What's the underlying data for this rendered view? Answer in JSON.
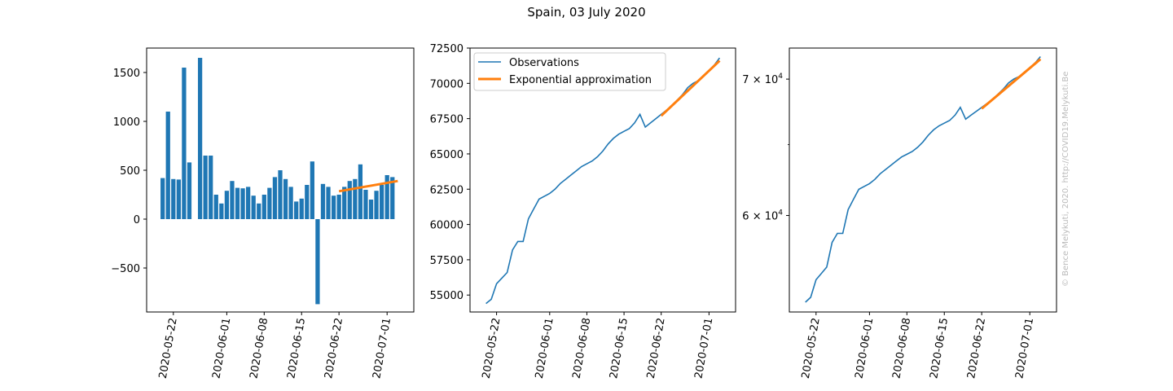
{
  "figure": {
    "title": "Spain, 03 July 2020",
    "copyright": "© Bence Melykuti, 2020. http://COVID19.Melykuti.Be"
  },
  "colors": {
    "observations": "#1f77b4",
    "approximation": "#ff7f0e"
  },
  "chart_data": [
    {
      "type": "bar",
      "panel": "daily-new-cases",
      "x_start": "2020-05-20",
      "x_end": "2020-07-03",
      "xticks": [
        "2020-05-22",
        "2020-06-01",
        "2020-06-08",
        "2020-06-15",
        "2020-06-22",
        "2020-07-01"
      ],
      "yticks": [
        -500,
        0,
        500,
        1000,
        1500
      ],
      "ylim": [
        -950,
        1750
      ],
      "values": [
        420,
        1100,
        410,
        405,
        1550,
        580,
        0,
        1650,
        650,
        650,
        250,
        160,
        290,
        390,
        320,
        315,
        330,
        240,
        160,
        250,
        320,
        430,
        500,
        410,
        330,
        180,
        210,
        350,
        590,
        -870,
        360,
        330,
        240,
        250,
        330,
        390,
        410,
        560,
        300,
        200,
        290,
        350,
        450,
        430
      ],
      "approximation": {
        "x_start": "2020-06-22",
        "x_end": "2020-07-03",
        "y_start": 285,
        "y_end": 390
      },
      "legend": "none",
      "grid": false
    },
    {
      "type": "line",
      "panel": "cumulative-linear",
      "x_start": "2020-05-20",
      "x_end": "2020-07-03",
      "xticks": [
        "2020-05-22",
        "2020-06-01",
        "2020-06-08",
        "2020-06-15",
        "2020-06-22",
        "2020-07-01"
      ],
      "yticks": [
        55000,
        57500,
        60000,
        62500,
        65000,
        67500,
        70000,
        72500
      ],
      "ylim": [
        53800,
        72500
      ],
      "series": [
        {
          "name": "Observations",
          "values": [
            54400,
            54700,
            55800,
            56200,
            56600,
            58200,
            58800,
            58800,
            60400,
            61100,
            61800,
            62000,
            62200,
            62500,
            62900,
            63200,
            63500,
            63800,
            64100,
            64300,
            64500,
            64800,
            65200,
            65700,
            66100,
            66400,
            66600,
            66800,
            67200,
            67800,
            66900,
            67200,
            67500,
            67800,
            68100,
            68400,
            68800,
            69200,
            69700,
            70000,
            70200,
            70500,
            70900,
            71300,
            71800
          ]
        },
        {
          "name": "Exponential approximation",
          "x_start": "2020-06-22",
          "x_end": "2020-07-03",
          "y_start": 67700,
          "y_end": 71600
        }
      ],
      "legend": "upper-left",
      "grid": false
    },
    {
      "type": "line",
      "panel": "cumulative-log",
      "x_start": "2020-05-20",
      "x_end": "2020-07-03",
      "xticks": [
        "2020-05-22",
        "2020-06-01",
        "2020-06-08",
        "2020-06-15",
        "2020-06-22",
        "2020-07-01"
      ],
      "yscale": "log",
      "yticks": [
        {
          "value": 60000,
          "mantissa": "6",
          "exponent": "4"
        },
        {
          "value": 70000,
          "mantissa": "7",
          "exponent": "4"
        }
      ],
      "ylim": [
        53800,
        72500
      ],
      "legend": "none",
      "grid": false
    }
  ]
}
